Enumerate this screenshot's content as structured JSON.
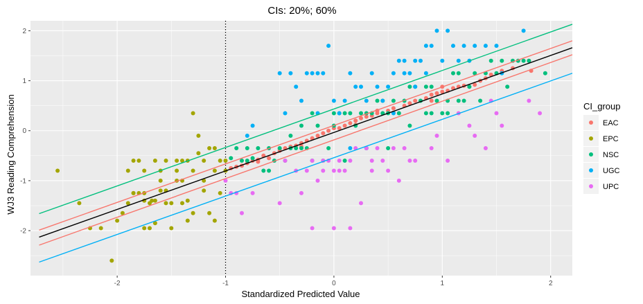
{
  "chart_data": {
    "type": "scatter",
    "title": "CIs: 20%; 60%",
    "xlabel": "Standardized Predicted Value",
    "ylabel": "WJ3 Reading Comprehension",
    "xlim": [
      -2.8,
      2.2
    ],
    "ylim": [
      -2.9,
      2.2
    ],
    "x_ticks": [
      -2,
      -1,
      0,
      1,
      2
    ],
    "y_ticks": [
      -2,
      -1,
      0,
      1,
      2
    ],
    "grid": true,
    "legend": {
      "title": "CI_group",
      "placement": "right",
      "entries": [
        {
          "label": "EAC",
          "color": "#F8766D"
        },
        {
          "label": "EPC",
          "color": "#A3A500"
        },
        {
          "label": "NSC",
          "color": "#00BF7D"
        },
        {
          "label": "UGC",
          "color": "#00B0F6"
        },
        {
          "label": "UPC",
          "color": "#E76BF3"
        }
      ]
    },
    "reference_vline": {
      "x": -1,
      "style": "dotted",
      "color": "#000000"
    },
    "fit_lines": [
      {
        "role": "fit",
        "color": "#000000",
        "from": [
          -2.72,
          -2.13
        ],
        "to": [
          2.2,
          1.66
        ]
      },
      {
        "role": "upper-20",
        "color": "#F8766D",
        "from": [
          -2.72,
          -1.99
        ],
        "to": [
          2.2,
          1.8
        ]
      },
      {
        "role": "lower-20",
        "color": "#F8766D",
        "from": [
          -2.72,
          -2.29
        ],
        "to": [
          2.2,
          1.52
        ]
      },
      {
        "role": "upper-60",
        "color": "#00BF7D",
        "from": [
          -2.72,
          -1.66
        ],
        "to": [
          2.2,
          2.13
        ]
      },
      {
        "role": "lower-60",
        "color": "#00B0F6",
        "from": [
          -2.72,
          -2.63
        ],
        "to": [
          2.2,
          1.15
        ]
      }
    ],
    "series": [
      {
        "name": "EAC",
        "color": "#F8766D",
        "points": [
          [
            -0.95,
            -0.75
          ],
          [
            -0.9,
            -0.72
          ],
          [
            -0.85,
            -0.7
          ],
          [
            -0.8,
            -0.65
          ],
          [
            -0.75,
            -0.6
          ],
          [
            -0.7,
            -0.62
          ],
          [
            -0.65,
            -0.5
          ],
          [
            -0.6,
            -0.55
          ],
          [
            -0.55,
            -0.45
          ],
          [
            -0.5,
            -0.4
          ],
          [
            -0.45,
            -0.35
          ],
          [
            -0.4,
            -0.32
          ],
          [
            -0.35,
            -0.3
          ],
          [
            -0.3,
            -0.25
          ],
          [
            -0.25,
            -0.2
          ],
          [
            -0.2,
            -0.15
          ],
          [
            -0.15,
            -0.1
          ],
          [
            -0.1,
            -0.05
          ],
          [
            -0.05,
            0.0
          ],
          [
            0.0,
            0.05
          ],
          [
            0.05,
            0.05
          ],
          [
            0.1,
            0.1
          ],
          [
            0.15,
            0.15
          ],
          [
            0.2,
            0.2
          ],
          [
            0.25,
            0.25
          ],
          [
            0.3,
            0.28
          ],
          [
            0.35,
            0.3
          ],
          [
            0.4,
            0.35
          ],
          [
            0.45,
            0.35
          ],
          [
            0.5,
            0.4
          ],
          [
            0.55,
            0.45
          ],
          [
            0.6,
            0.35
          ],
          [
            0.65,
            0.5
          ],
          [
            0.7,
            0.55
          ],
          [
            0.75,
            0.6
          ],
          [
            0.8,
            0.6
          ],
          [
            0.85,
            0.65
          ],
          [
            0.9,
            0.72
          ],
          [
            0.95,
            0.75
          ],
          [
            1.0,
            0.78
          ],
          [
            1.05,
            0.8
          ],
          [
            1.1,
            0.85
          ],
          [
            1.15,
            0.88
          ],
          [
            1.2,
            0.9
          ],
          [
            1.25,
            0.88
          ],
          [
            1.3,
            0.92
          ],
          [
            1.35,
            1.0
          ],
          [
            1.4,
            1.05
          ],
          [
            1.45,
            1.12
          ],
          [
            1.5,
            1.15
          ],
          [
            1.55,
            1.2
          ],
          [
            1.65,
            1.25
          ],
          [
            1.8,
            1.4
          ],
          [
            1.82,
            1.2
          ],
          [
            1.0,
            0.88
          ],
          [
            0.4,
            0.4
          ],
          [
            -0.3,
            -0.32
          ],
          [
            -0.7,
            -0.58
          ],
          [
            -0.5,
            -0.36
          ],
          [
            0.2,
            0.12
          ],
          [
            0.55,
            0.36
          ],
          [
            0.9,
            0.6
          ]
        ]
      },
      {
        "name": "EPC",
        "color": "#A3A500",
        "points": [
          [
            -2.55,
            -0.8
          ],
          [
            -2.35,
            -1.45
          ],
          [
            -2.25,
            -1.95
          ],
          [
            -2.15,
            -1.95
          ],
          [
            -2.05,
            -2.6
          ],
          [
            -1.95,
            -1.65
          ],
          [
            -1.9,
            -1.45
          ],
          [
            -1.85,
            -1.25
          ],
          [
            -1.8,
            -0.6
          ],
          [
            -1.75,
            -1.4
          ],
          [
            -1.7,
            -1.95
          ],
          [
            -1.65,
            -0.6
          ],
          [
            -1.6,
            -0.8
          ],
          [
            -1.55,
            -0.6
          ],
          [
            -1.5,
            -1.45
          ],
          [
            -1.45,
            -0.6
          ],
          [
            -1.4,
            -1.0
          ],
          [
            -1.35,
            -0.6
          ],
          [
            -1.3,
            -0.8
          ],
          [
            -1.25,
            -0.1
          ],
          [
            -1.2,
            -0.6
          ],
          [
            -1.15,
            -0.35
          ],
          [
            -1.1,
            -0.8
          ],
          [
            -1.05,
            -0.6
          ],
          [
            -2.0,
            -1.8
          ],
          [
            -1.9,
            -0.8
          ],
          [
            -1.85,
            -0.6
          ],
          [
            -1.8,
            -1.25
          ],
          [
            -1.75,
            -1.25
          ],
          [
            -1.7,
            -1.45
          ],
          [
            -1.68,
            -1.4
          ],
          [
            -1.65,
            -1.85
          ],
          [
            -1.6,
            -1.2
          ],
          [
            -1.55,
            -1.45
          ],
          [
            -1.5,
            -1.95
          ],
          [
            -1.45,
            -1.0
          ],
          [
            -1.4,
            -1.45
          ],
          [
            -1.35,
            -1.8
          ],
          [
            -1.3,
            -1.65
          ],
          [
            -1.25,
            -0.45
          ],
          [
            -1.2,
            -1.2
          ],
          [
            -1.15,
            -1.65
          ],
          [
            -1.1,
            -1.8
          ],
          [
            -1.05,
            -1.25
          ],
          [
            -1.0,
            -0.6
          ],
          [
            -1.3,
            0.35
          ],
          [
            -1.45,
            -0.8
          ],
          [
            -1.6,
            -1.0
          ],
          [
            -1.75,
            -1.95
          ],
          [
            -1.85,
            -1.25
          ],
          [
            -1.55,
            -1.2
          ],
          [
            -1.35,
            -1.4
          ],
          [
            -1.2,
            -1.0
          ],
          [
            -1.1,
            -0.35
          ],
          [
            -1.0,
            -0.8
          ],
          [
            -1.75,
            -0.8
          ],
          [
            -1.65,
            -1.4
          ],
          [
            -1.4,
            -0.6
          ]
        ]
      },
      {
        "name": "NSC",
        "color": "#00BF7D",
        "points": [
          [
            -0.95,
            -0.55
          ],
          [
            -0.9,
            -0.35
          ],
          [
            -0.85,
            -0.6
          ],
          [
            -0.8,
            -0.35
          ],
          [
            -0.75,
            -0.55
          ],
          [
            -0.7,
            -0.35
          ],
          [
            -0.65,
            -0.8
          ],
          [
            -0.6,
            -0.35
          ],
          [
            -0.55,
            -0.6
          ],
          [
            -0.5,
            -0.35
          ],
          [
            -0.45,
            -0.6
          ],
          [
            -0.4,
            -0.1
          ],
          [
            -0.35,
            -0.35
          ],
          [
            -0.3,
            0.1
          ],
          [
            -0.25,
            -0.35
          ],
          [
            -0.2,
            -0.6
          ],
          [
            -0.15,
            0.1
          ],
          [
            -0.1,
            -0.6
          ],
          [
            -0.05,
            -0.35
          ],
          [
            0.0,
            0.35
          ],
          [
            0.05,
            0.35
          ],
          [
            0.1,
            -0.6
          ],
          [
            0.15,
            0.35
          ],
          [
            0.2,
            0.1
          ],
          [
            0.25,
            0.35
          ],
          [
            0.3,
            -0.35
          ],
          [
            0.35,
            0.35
          ],
          [
            0.4,
            0.6
          ],
          [
            0.45,
            0.35
          ],
          [
            0.5,
            -0.35
          ],
          [
            0.55,
            0.6
          ],
          [
            0.6,
            0.35
          ],
          [
            0.65,
            0.6
          ],
          [
            0.7,
            0.1
          ],
          [
            0.75,
            0.88
          ],
          [
            0.8,
            0.6
          ],
          [
            0.85,
            0.88
          ],
          [
            0.9,
            0.35
          ],
          [
            0.95,
            0.6
          ],
          [
            1.0,
            0.35
          ],
          [
            1.05,
            0.6
          ],
          [
            1.1,
            1.15
          ],
          [
            1.15,
            0.6
          ],
          [
            1.2,
            0.6
          ],
          [
            1.3,
            1.15
          ],
          [
            1.35,
            0.6
          ],
          [
            1.45,
            1.4
          ],
          [
            1.5,
            1.15
          ],
          [
            1.55,
            1.4
          ],
          [
            1.6,
            0.88
          ],
          [
            1.65,
            1.4
          ],
          [
            1.7,
            1.4
          ],
          [
            1.75,
            1.4
          ],
          [
            1.8,
            1.4
          ],
          [
            1.95,
            1.15
          ],
          [
            -0.6,
            -0.8
          ],
          [
            -0.4,
            -0.35
          ],
          [
            -0.2,
            0.35
          ],
          [
            0.0,
            0.1
          ],
          [
            0.3,
            0.35
          ],
          [
            0.5,
            0.35
          ],
          [
            0.7,
            0.88
          ],
          [
            0.9,
            0.88
          ],
          [
            1.05,
            0.35
          ],
          [
            1.25,
            0.88
          ],
          [
            1.4,
            1.15
          ],
          [
            -0.8,
            -0.6
          ],
          [
            -0.3,
            -0.35
          ],
          [
            0.1,
            0.35
          ],
          [
            0.45,
            0.6
          ],
          [
            0.85,
            0.35
          ],
          [
            1.15,
            1.15
          ]
        ]
      },
      {
        "name": "UGC",
        "color": "#00B0F6",
        "points": [
          [
            -0.8,
            -0.1
          ],
          [
            -0.75,
            0.1
          ],
          [
            -0.5,
            1.15
          ],
          [
            -0.45,
            0.35
          ],
          [
            -0.4,
            1.15
          ],
          [
            -0.35,
            0.88
          ],
          [
            -0.3,
            0.6
          ],
          [
            -0.25,
            1.15
          ],
          [
            -0.2,
            1.15
          ],
          [
            -0.15,
            0.35
          ],
          [
            -0.1,
            1.15
          ],
          [
            -0.05,
            1.7
          ],
          [
            0.0,
            0.6
          ],
          [
            0.05,
            0.35
          ],
          [
            0.1,
            0.6
          ],
          [
            0.15,
            1.15
          ],
          [
            0.2,
            0.88
          ],
          [
            0.25,
            0.88
          ],
          [
            0.3,
            0.6
          ],
          [
            0.35,
            1.15
          ],
          [
            0.4,
            0.88
          ],
          [
            0.45,
            0.6
          ],
          [
            0.5,
            0.88
          ],
          [
            0.55,
            1.15
          ],
          [
            0.6,
            1.4
          ],
          [
            0.65,
            1.4
          ],
          [
            0.7,
            1.15
          ],
          [
            0.75,
            0.88
          ],
          [
            0.8,
            1.4
          ],
          [
            0.85,
            1.15
          ],
          [
            0.9,
            1.7
          ],
          [
            0.95,
            2.0
          ],
          [
            1.0,
            1.4
          ],
          [
            1.05,
            2.0
          ],
          [
            1.1,
            1.7
          ],
          [
            1.15,
            1.4
          ],
          [
            1.2,
            1.7
          ],
          [
            1.3,
            1.7
          ],
          [
            1.4,
            1.7
          ],
          [
            1.5,
            1.7
          ],
          [
            1.55,
            1.15
          ],
          [
            1.75,
            2.0
          ],
          [
            0.55,
            0.35
          ],
          [
            0.3,
            -0.35
          ],
          [
            0.15,
            -0.35
          ],
          [
            -0.15,
            1.15
          ],
          [
            0.75,
            1.4
          ],
          [
            1.25,
            1.4
          ],
          [
            0.85,
            1.7
          ],
          [
            0.65,
            1.15
          ]
        ]
      },
      {
        "name": "UPC",
        "color": "#E76BF3",
        "points": [
          [
            -1.0,
            -1.0
          ],
          [
            -0.95,
            -1.25
          ],
          [
            -0.9,
            -1.25
          ],
          [
            -0.85,
            -1.65
          ],
          [
            -0.75,
            -1.25
          ],
          [
            -0.5,
            -1.45
          ],
          [
            -0.45,
            -0.6
          ],
          [
            -0.35,
            -0.8
          ],
          [
            -0.3,
            -1.25
          ],
          [
            -0.25,
            -0.8
          ],
          [
            -0.2,
            -0.6
          ],
          [
            -0.15,
            -1.0
          ],
          [
            -0.1,
            -0.8
          ],
          [
            -0.05,
            -0.6
          ],
          [
            0.0,
            -0.8
          ],
          [
            0.05,
            -0.6
          ],
          [
            0.1,
            -0.8
          ],
          [
            0.15,
            -0.6
          ],
          [
            0.2,
            -0.35
          ],
          [
            0.25,
            -1.45
          ],
          [
            0.3,
            -0.35
          ],
          [
            0.35,
            -0.6
          ],
          [
            0.4,
            -0.35
          ],
          [
            0.45,
            -0.6
          ],
          [
            0.5,
            -0.8
          ],
          [
            0.55,
            -0.35
          ],
          [
            0.6,
            -1.0
          ],
          [
            0.65,
            -0.35
          ],
          [
            0.7,
            -0.6
          ],
          [
            0.75,
            -0.6
          ],
          [
            0.9,
            -0.35
          ],
          [
            0.95,
            -0.1
          ],
          [
            1.05,
            -0.6
          ],
          [
            1.15,
            0.35
          ],
          [
            1.25,
            0.1
          ],
          [
            1.3,
            -0.1
          ],
          [
            1.4,
            -0.35
          ],
          [
            1.45,
            0.6
          ],
          [
            1.5,
            0.35
          ],
          [
            1.55,
            0.1
          ],
          [
            1.8,
            0.6
          ],
          [
            1.9,
            0.35
          ],
          [
            -0.2,
            -1.95
          ],
          [
            0.0,
            -1.95
          ],
          [
            0.15,
            -1.95
          ],
          [
            -0.1,
            -0.6
          ],
          [
            0.35,
            -0.8
          ],
          [
            0.05,
            -0.8
          ]
        ]
      }
    ]
  }
}
